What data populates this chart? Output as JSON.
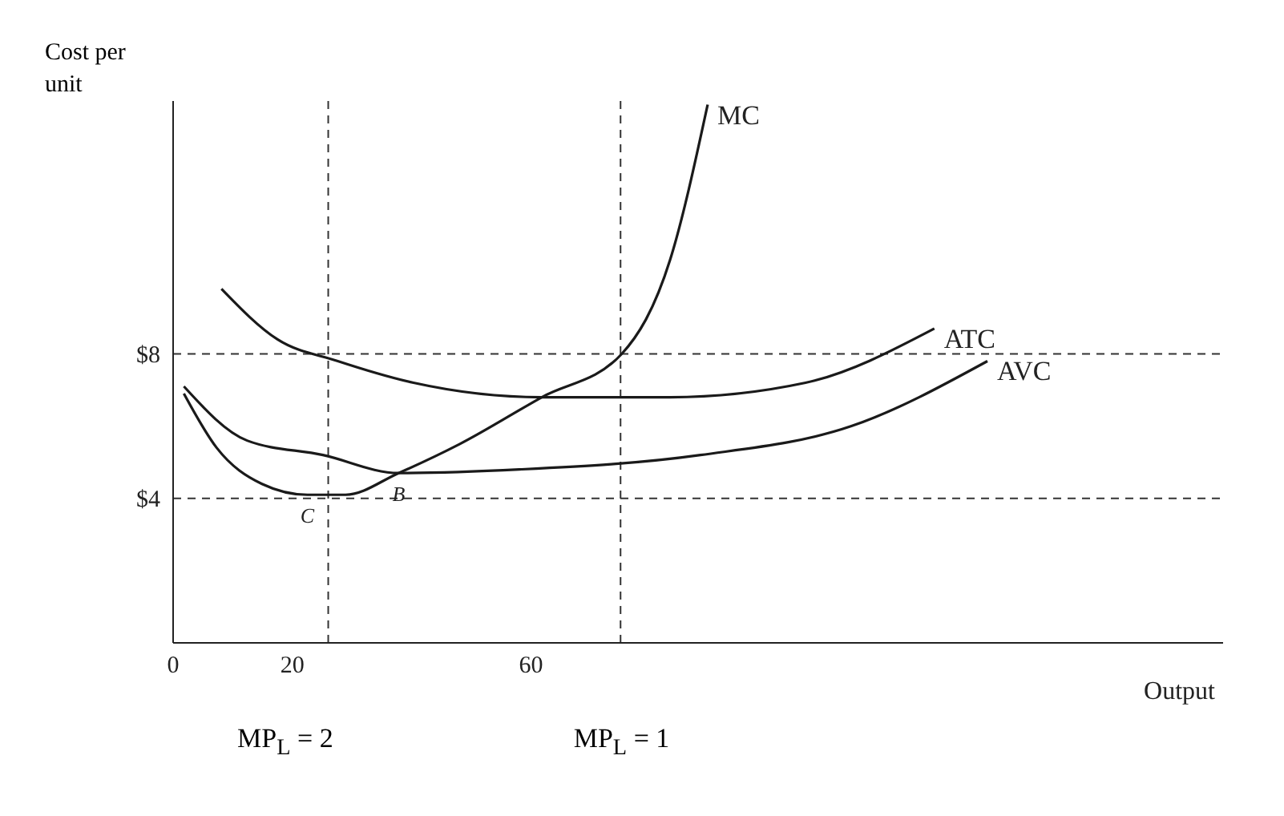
{
  "chart_data": {
    "type": "line",
    "ylabel": "Cost per unit",
    "xlabel": "Output",
    "xlim": [
      0,
      176
    ],
    "ylim": [
      0,
      15
    ],
    "xticks": [
      0,
      20,
      60
    ],
    "yticks": [
      {
        "value": 4,
        "label": "$4"
      },
      {
        "value": 8,
        "label": "$8"
      }
    ],
    "series": [
      {
        "name": "MC",
        "color": "#1a1a1a",
        "x": [
          1.8,
          7.3,
          14.9,
          22.5,
          28.9,
          37.8,
          48,
          61.8,
          75.2,
          83.3,
          89.6
        ],
        "values": [
          6.9,
          5.4,
          4.4,
          4.1,
          4.1,
          4.7,
          5.5,
          6.8,
          8.0,
          10.6,
          14.9
        ]
      },
      {
        "name": "ATC",
        "color": "#1a1a1a",
        "x": [
          8.1,
          17.5,
          27.6,
          40.3,
          61.8,
          83.3,
          106,
          127.6
        ],
        "values": [
          9.8,
          8.4,
          7.8,
          7.2,
          6.8,
          6.8,
          7.2,
          8.7
        ]
      },
      {
        "name": "AVC",
        "color": "#1a1a1a",
        "x": [
          1.8,
          12.4,
          25.1,
          37.8,
          58,
          88.4,
          113.7,
          136.5
        ],
        "values": [
          7.1,
          5.6,
          5.2,
          4.7,
          4.8,
          5.2,
          6.0,
          7.8
        ]
      }
    ],
    "ref_lines": [
      {
        "axis": "x",
        "value": 26,
        "line_style": "dashed"
      },
      {
        "axis": "x",
        "value": 75,
        "line_style": "dashed"
      },
      {
        "axis": "y",
        "value": 8,
        "line_style": "dashed"
      },
      {
        "axis": "y",
        "value": 4,
        "line_style": "dashed"
      }
    ],
    "annotations": [
      {
        "text": "C",
        "x": 22.5,
        "y": 4.1
      },
      {
        "text": "B",
        "x": 37.8,
        "y": 4.7
      },
      "MP$_{L}$ = 2",
      "MP$_{L}$ = 1"
    ],
    "grid": false,
    "legend": false,
    "marker": "none",
    "line_style": "solid"
  }
}
